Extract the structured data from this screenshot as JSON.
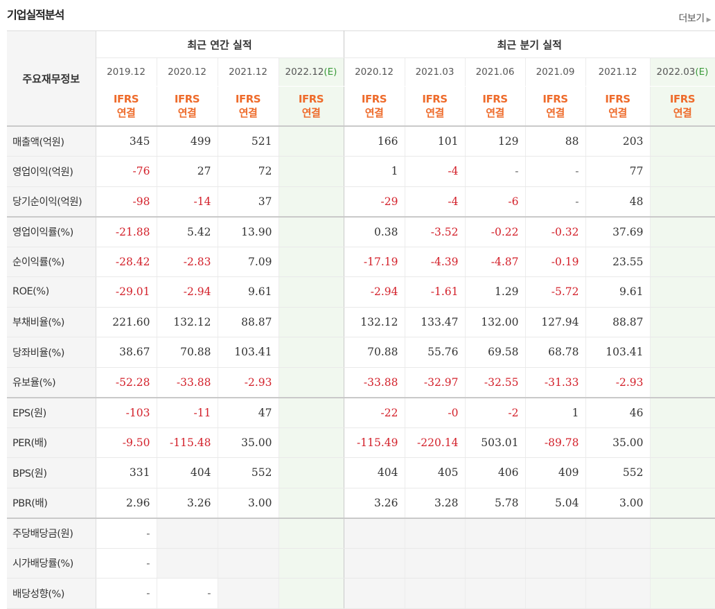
{
  "section_title": "기업실적분석",
  "more_link": "더보기",
  "corner_label": "주요재무정보",
  "groups": {
    "annual": "최근 연간 실적",
    "quarterly": "최근 분기 실적"
  },
  "periods": [
    {
      "label": "2019.12",
      "est": ""
    },
    {
      "label": "2020.12",
      "est": ""
    },
    {
      "label": "2021.12",
      "est": ""
    },
    {
      "label": "2022.12",
      "est": "(E)"
    },
    {
      "label": "2020.12",
      "est": ""
    },
    {
      "label": "2021.03",
      "est": ""
    },
    {
      "label": "2021.06",
      "est": ""
    },
    {
      "label": "2021.09",
      "est": ""
    },
    {
      "label": "2021.12",
      "est": ""
    },
    {
      "label": "2022.03",
      "est": "(E)"
    }
  ],
  "basis": {
    "line1": "IFRS",
    "line2": "연결"
  },
  "rows": [
    {
      "label": "매출액(억원)",
      "values": [
        "345",
        "499",
        "521",
        "",
        "166",
        "101",
        "129",
        "88",
        "203",
        ""
      ]
    },
    {
      "label": "영업이익(억원)",
      "values": [
        "-76",
        "27",
        "72",
        "",
        "1",
        "-4",
        "-",
        "-",
        "77",
        ""
      ]
    },
    {
      "label": "당기순이익(억원)",
      "values": [
        "-98",
        "-14",
        "37",
        "",
        "-29",
        "-4",
        "-6",
        "-",
        "48",
        ""
      ]
    },
    {
      "label": "영업이익률(%)",
      "values": [
        "-21.88",
        "5.42",
        "13.90",
        "",
        "0.38",
        "-3.52",
        "-0.22",
        "-0.32",
        "37.69",
        ""
      ]
    },
    {
      "label": "순이익률(%)",
      "values": [
        "-28.42",
        "-2.83",
        "7.09",
        "",
        "-17.19",
        "-4.39",
        "-4.87",
        "-0.19",
        "23.55",
        ""
      ]
    },
    {
      "label": "ROE(%)",
      "values": [
        "-29.01",
        "-2.94",
        "9.61",
        "",
        "-2.94",
        "-1.61",
        "1.29",
        "-5.72",
        "9.61",
        ""
      ]
    },
    {
      "label": "부채비율(%)",
      "values": [
        "221.60",
        "132.12",
        "88.87",
        "",
        "132.12",
        "133.47",
        "132.00",
        "127.94",
        "88.87",
        ""
      ]
    },
    {
      "label": "당좌비율(%)",
      "values": [
        "38.67",
        "70.88",
        "103.41",
        "",
        "70.88",
        "55.76",
        "69.58",
        "68.78",
        "103.41",
        ""
      ]
    },
    {
      "label": "유보율(%)",
      "values": [
        "-52.28",
        "-33.88",
        "-2.93",
        "",
        "-33.88",
        "-32.97",
        "-32.55",
        "-31.33",
        "-2.93",
        ""
      ]
    },
    {
      "label": "EPS(원)",
      "values": [
        "-103",
        "-11",
        "47",
        "",
        "-22",
        "-0",
        "-2",
        "1",
        "46",
        ""
      ]
    },
    {
      "label": "PER(배)",
      "values": [
        "-9.50",
        "-115.48",
        "35.00",
        "",
        "-115.49",
        "-220.14",
        "503.01",
        "-89.78",
        "35.00",
        ""
      ]
    },
    {
      "label": "BPS(원)",
      "values": [
        "331",
        "404",
        "552",
        "",
        "404",
        "405",
        "406",
        "409",
        "552",
        ""
      ]
    },
    {
      "label": "PBR(배)",
      "values": [
        "2.96",
        "3.26",
        "3.00",
        "",
        "3.26",
        "3.28",
        "5.78",
        "5.04",
        "3.00",
        ""
      ]
    },
    {
      "label": "주당배당금(원)",
      "values": [
        "-",
        "",
        "",
        "",
        "",
        "",
        "",
        "",
        "",
        ""
      ]
    },
    {
      "label": "시가배당률(%)",
      "values": [
        "-",
        "",
        "",
        "",
        "",
        "",
        "",
        "",
        "",
        ""
      ]
    },
    {
      "label": "배당성향(%)",
      "values": [
        "-",
        "-",
        "",
        "",
        "",
        "",
        "",
        "",
        "",
        ""
      ]
    }
  ],
  "colors": {
    "negative": "#d3202a",
    "ifrs": "#ee6b2b",
    "estimate_bg": "#f1f8ef",
    "label_bg": "#f5f5f5"
  }
}
